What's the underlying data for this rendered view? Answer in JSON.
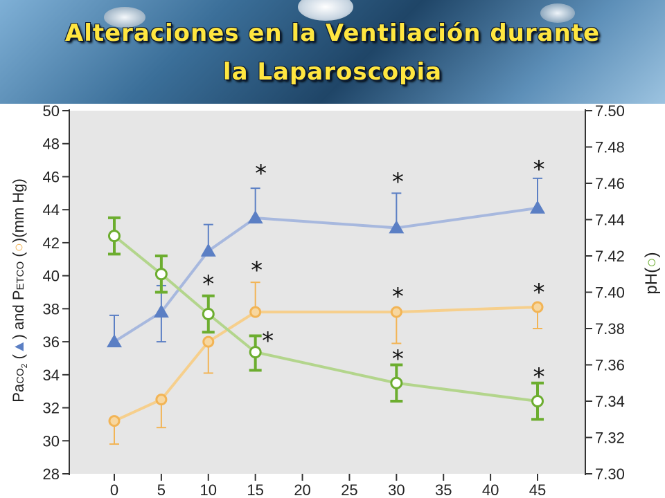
{
  "title": {
    "line1": "Alteraciones en la Ventilación durante",
    "line2": "la Laparoscopia"
  },
  "chart_data": {
    "type": "line",
    "x": [
      0,
      5,
      10,
      15,
      30,
      45
    ],
    "x_ticks": [
      "0",
      "5",
      "10",
      "15",
      "20",
      "25",
      "30",
      "35",
      "40",
      "45"
    ],
    "left_axis": {
      "label_parts": [
        "Pa",
        "CO",
        "2",
        " (",
        ") and P",
        "ETCO",
        " (",
        ")(mm Hg)"
      ],
      "ylim": [
        28,
        50
      ],
      "ticks": [
        "28",
        "30",
        "32",
        "34",
        "36",
        "38",
        "40",
        "42",
        "44",
        "46",
        "48",
        "50"
      ]
    },
    "right_axis": {
      "label": "pH(",
      "label_end": ")",
      "ylim": [
        7.3,
        7.5
      ],
      "ticks": [
        "7.30",
        "7.32",
        "7.34",
        "7.36",
        "7.38",
        "7.40",
        "7.42",
        "7.44",
        "7.46",
        "7.48",
        "7.50"
      ]
    },
    "series": [
      {
        "marker": "triangle",
        "axis": "left",
        "color": "#5b7fc4",
        "line_color": "#a7b8de",
        "values": [
          36.0,
          37.8,
          41.5,
          43.5,
          42.9,
          44.1
        ],
        "err_up": [
          1.6,
          1.6,
          1.6,
          1.8,
          2.1,
          1.8
        ],
        "err_down": [
          0,
          1.8,
          0,
          0,
          0,
          0
        ],
        "significant": [
          false,
          false,
          false,
          true,
          true,
          true
        ]
      },
      {
        "marker": "circle",
        "axis": "left",
        "color": "#f2b455",
        "line_color": "#f6cf8c",
        "values": [
          31.2,
          32.5,
          36.0,
          37.8,
          37.8,
          38.1
        ],
        "err_up": [
          0,
          0,
          0,
          1.8,
          0,
          0
        ],
        "err_down": [
          1.4,
          1.7,
          1.9,
          0,
          1.9,
          1.3
        ],
        "significant": [
          false,
          false,
          true,
          true,
          true,
          true
        ]
      },
      {
        "marker": "circle-green",
        "axis": "right",
        "color": "#6cad2f",
        "line_color": "#b3d58c",
        "values": [
          7.431,
          7.41,
          7.388,
          7.367,
          7.35,
          7.34
        ],
        "err_up": [
          0.01,
          0.01,
          0.01,
          0.009,
          0.01,
          0.01
        ],
        "err_down": [
          0.01,
          0.01,
          0.01,
          0.01,
          0.01,
          0.01
        ],
        "significant": [
          false,
          false,
          false,
          true,
          true,
          true
        ]
      }
    ],
    "significance_symbol": "*"
  }
}
